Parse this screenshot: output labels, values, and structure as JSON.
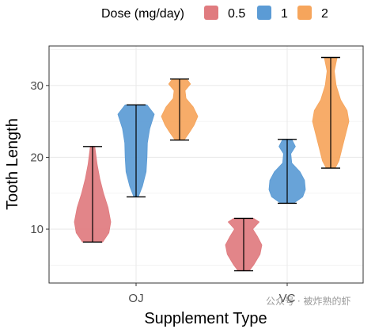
{
  "chart_data": {
    "type": "violin",
    "xlabel": "Supplement Type",
    "ylabel": "Tooth Length",
    "categories": [
      "OJ",
      "VC"
    ],
    "yticks": [
      10,
      20,
      30
    ],
    "ylim": [
      2.5,
      35.5
    ],
    "grid": true,
    "legend": {
      "title": "Dose (mg/day)",
      "position": "top",
      "entries": [
        "0.5",
        "1",
        "2"
      ]
    },
    "series": [
      {
        "name": "0.5",
        "color": "#e07b7f",
        "groups": [
          {
            "category": "OJ",
            "min": 8.2,
            "max": 21.5,
            "profile": [
              [
                8.2,
                0.55
              ],
              [
                9.5,
                0.9
              ],
              [
                11,
                1.0
              ],
              [
                13,
                0.85
              ],
              [
                15,
                0.6
              ],
              [
                17,
                0.4
              ],
              [
                19,
                0.25
              ],
              [
                21.5,
                0.12
              ]
            ]
          },
          {
            "category": "VC",
            "min": 4.2,
            "max": 11.5,
            "profile": [
              [
                4.2,
                0.3
              ],
              [
                5,
                0.55
              ],
              [
                6.5,
                0.9
              ],
              [
                7.8,
                1.0
              ],
              [
                9,
                0.75
              ],
              [
                10,
                0.5
              ],
              [
                11,
                0.85
              ],
              [
                11.5,
                0.55
              ]
            ]
          }
        ]
      },
      {
        "name": "1",
        "color": "#5b9bd5",
        "groups": [
          {
            "category": "OJ",
            "min": 14.5,
            "max": 27.3,
            "profile": [
              [
                14.5,
                0.12
              ],
              [
                16,
                0.35
              ],
              [
                18,
                0.55
              ],
              [
                20,
                0.6
              ],
              [
                22,
                0.62
              ],
              [
                24,
                0.75
              ],
              [
                26,
                1.0
              ],
              [
                27.3,
                0.6
              ]
            ]
          },
          {
            "category": "VC",
            "min": 13.6,
            "max": 22.5,
            "profile": [
              [
                13.6,
                0.35
              ],
              [
                14.5,
                0.85
              ],
              [
                15.5,
                1.0
              ],
              [
                16.8,
                0.95
              ],
              [
                18,
                0.7
              ],
              [
                19.2,
                0.25
              ],
              [
                20.5,
                0.2
              ],
              [
                21.5,
                0.45
              ],
              [
                22.5,
                0.25
              ]
            ]
          }
        ]
      },
      {
        "name": "2",
        "color": "#f6a55c",
        "groups": [
          {
            "category": "OJ",
            "min": 22.4,
            "max": 30.9,
            "profile": [
              [
                22.4,
                0.25
              ],
              [
                23.5,
                0.55
              ],
              [
                24.5,
                0.8
              ],
              [
                25.7,
                1.0
              ],
              [
                27,
                0.75
              ],
              [
                28.2,
                0.35
              ],
              [
                29.3,
                0.3
              ],
              [
                30.2,
                0.6
              ],
              [
                30.9,
                0.4
              ]
            ]
          },
          {
            "category": "VC",
            "min": 18.5,
            "max": 33.9,
            "profile": [
              [
                18.5,
                0.25
              ],
              [
                19.5,
                0.45
              ],
              [
                21,
                0.6
              ],
              [
                23,
                0.8
              ],
              [
                25,
                1.0
              ],
              [
                26.5,
                0.9
              ],
              [
                28,
                0.55
              ],
              [
                30,
                0.3
              ],
              [
                32,
                0.2
              ],
              [
                33.9,
                0.35
              ]
            ]
          }
        ]
      }
    ]
  },
  "watermark": "公众号 · 被炸熟的虾"
}
